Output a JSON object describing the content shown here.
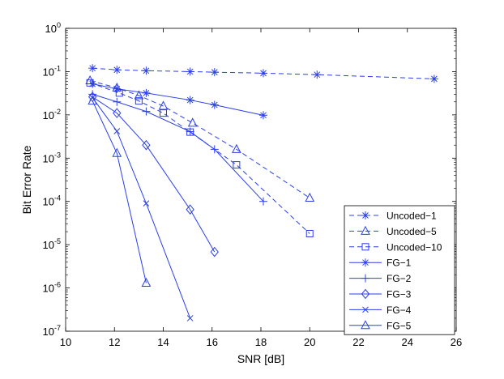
{
  "chart_data": {
    "type": "line",
    "title": "",
    "xlabel": "SNR [dB]",
    "ylabel": "Bit Error Rate",
    "xlim": [
      10,
      26
    ],
    "ylim": [
      1e-07,
      1
    ],
    "yscale": "log",
    "grid": false,
    "legend_position": "bottom-right",
    "x_ticks": [
      10,
      12,
      14,
      16,
      18,
      20,
      22,
      24,
      26
    ],
    "x_tick_labels": [
      "10",
      "12",
      "14",
      "16",
      "18",
      "20",
      "22",
      "24",
      "26"
    ],
    "y_ticks": [
      1,
      0.1,
      0.01,
      0.001,
      0.0001,
      1e-05,
      1e-06,
      1e-07
    ],
    "y_tick_labels": [
      {
        "base": "10",
        "exp": "0"
      },
      {
        "base": "10",
        "exp": "-1"
      },
      {
        "base": "10",
        "exp": "-2"
      },
      {
        "base": "10",
        "exp": "-3"
      },
      {
        "base": "10",
        "exp": "-4"
      },
      {
        "base": "10",
        "exp": "-5"
      },
      {
        "base": "10",
        "exp": "-6"
      },
      {
        "base": "10",
        "exp": "-7"
      }
    ],
    "color": "#2b3fe8",
    "series": [
      {
        "name": "Uncoded−1",
        "line": "dashed",
        "marker": "asterisk",
        "x": [
          11.1,
          12.1,
          13.3,
          15.1,
          16.1,
          18.1,
          20.3,
          25.1
        ],
        "y": [
          0.12,
          0.11,
          0.105,
          0.1,
          0.097,
          0.092,
          0.085,
          0.068
        ]
      },
      {
        "name": "Uncoded−5",
        "line": "dashed",
        "marker": "triangle",
        "x": [
          11.0,
          12.1,
          13.0,
          14.0,
          15.2,
          17.0,
          20.0
        ],
        "y": [
          0.062,
          0.042,
          0.028,
          0.016,
          0.0065,
          0.0016,
          0.00012
        ]
      },
      {
        "name": "Uncoded−10",
        "line": "dashed",
        "marker": "square",
        "x": [
          11.0,
          12.2,
          13.0,
          14.0,
          15.1,
          17.0,
          20.0
        ],
        "y": [
          0.055,
          0.032,
          0.021,
          0.011,
          0.004,
          0.0007,
          1.8e-05
        ]
      },
      {
        "name": "FG−1",
        "line": "solid",
        "marker": "asterisk",
        "x": [
          11.1,
          12.1,
          13.3,
          15.1,
          16.1,
          18.1
        ],
        "y": [
          0.052,
          0.04,
          0.032,
          0.022,
          0.017,
          0.0098
        ]
      },
      {
        "name": "FG−2",
        "line": "solid",
        "marker": "plus",
        "x": [
          11.1,
          12.1,
          13.3,
          15.1,
          16.1,
          18.1
        ],
        "y": [
          0.03,
          0.02,
          0.012,
          0.0041,
          0.0016,
          0.0001
        ]
      },
      {
        "name": "FG−3",
        "line": "solid",
        "marker": "diamond",
        "x": [
          11.1,
          12.1,
          13.3,
          15.1,
          16.1
        ],
        "y": [
          0.026,
          0.011,
          0.002,
          6.5e-05,
          6.8e-06
        ]
      },
      {
        "name": "FG−4",
        "line": "solid",
        "marker": "x",
        "x": [
          11.1,
          12.1,
          13.3,
          15.1
        ],
        "y": [
          0.025,
          0.0042,
          9e-05,
          2e-07
        ]
      },
      {
        "name": "FG−5",
        "line": "solid",
        "marker": "triangle",
        "x": [
          11.1,
          12.1,
          13.3
        ],
        "y": [
          0.021,
          0.0013,
          1.3e-06
        ]
      }
    ]
  }
}
